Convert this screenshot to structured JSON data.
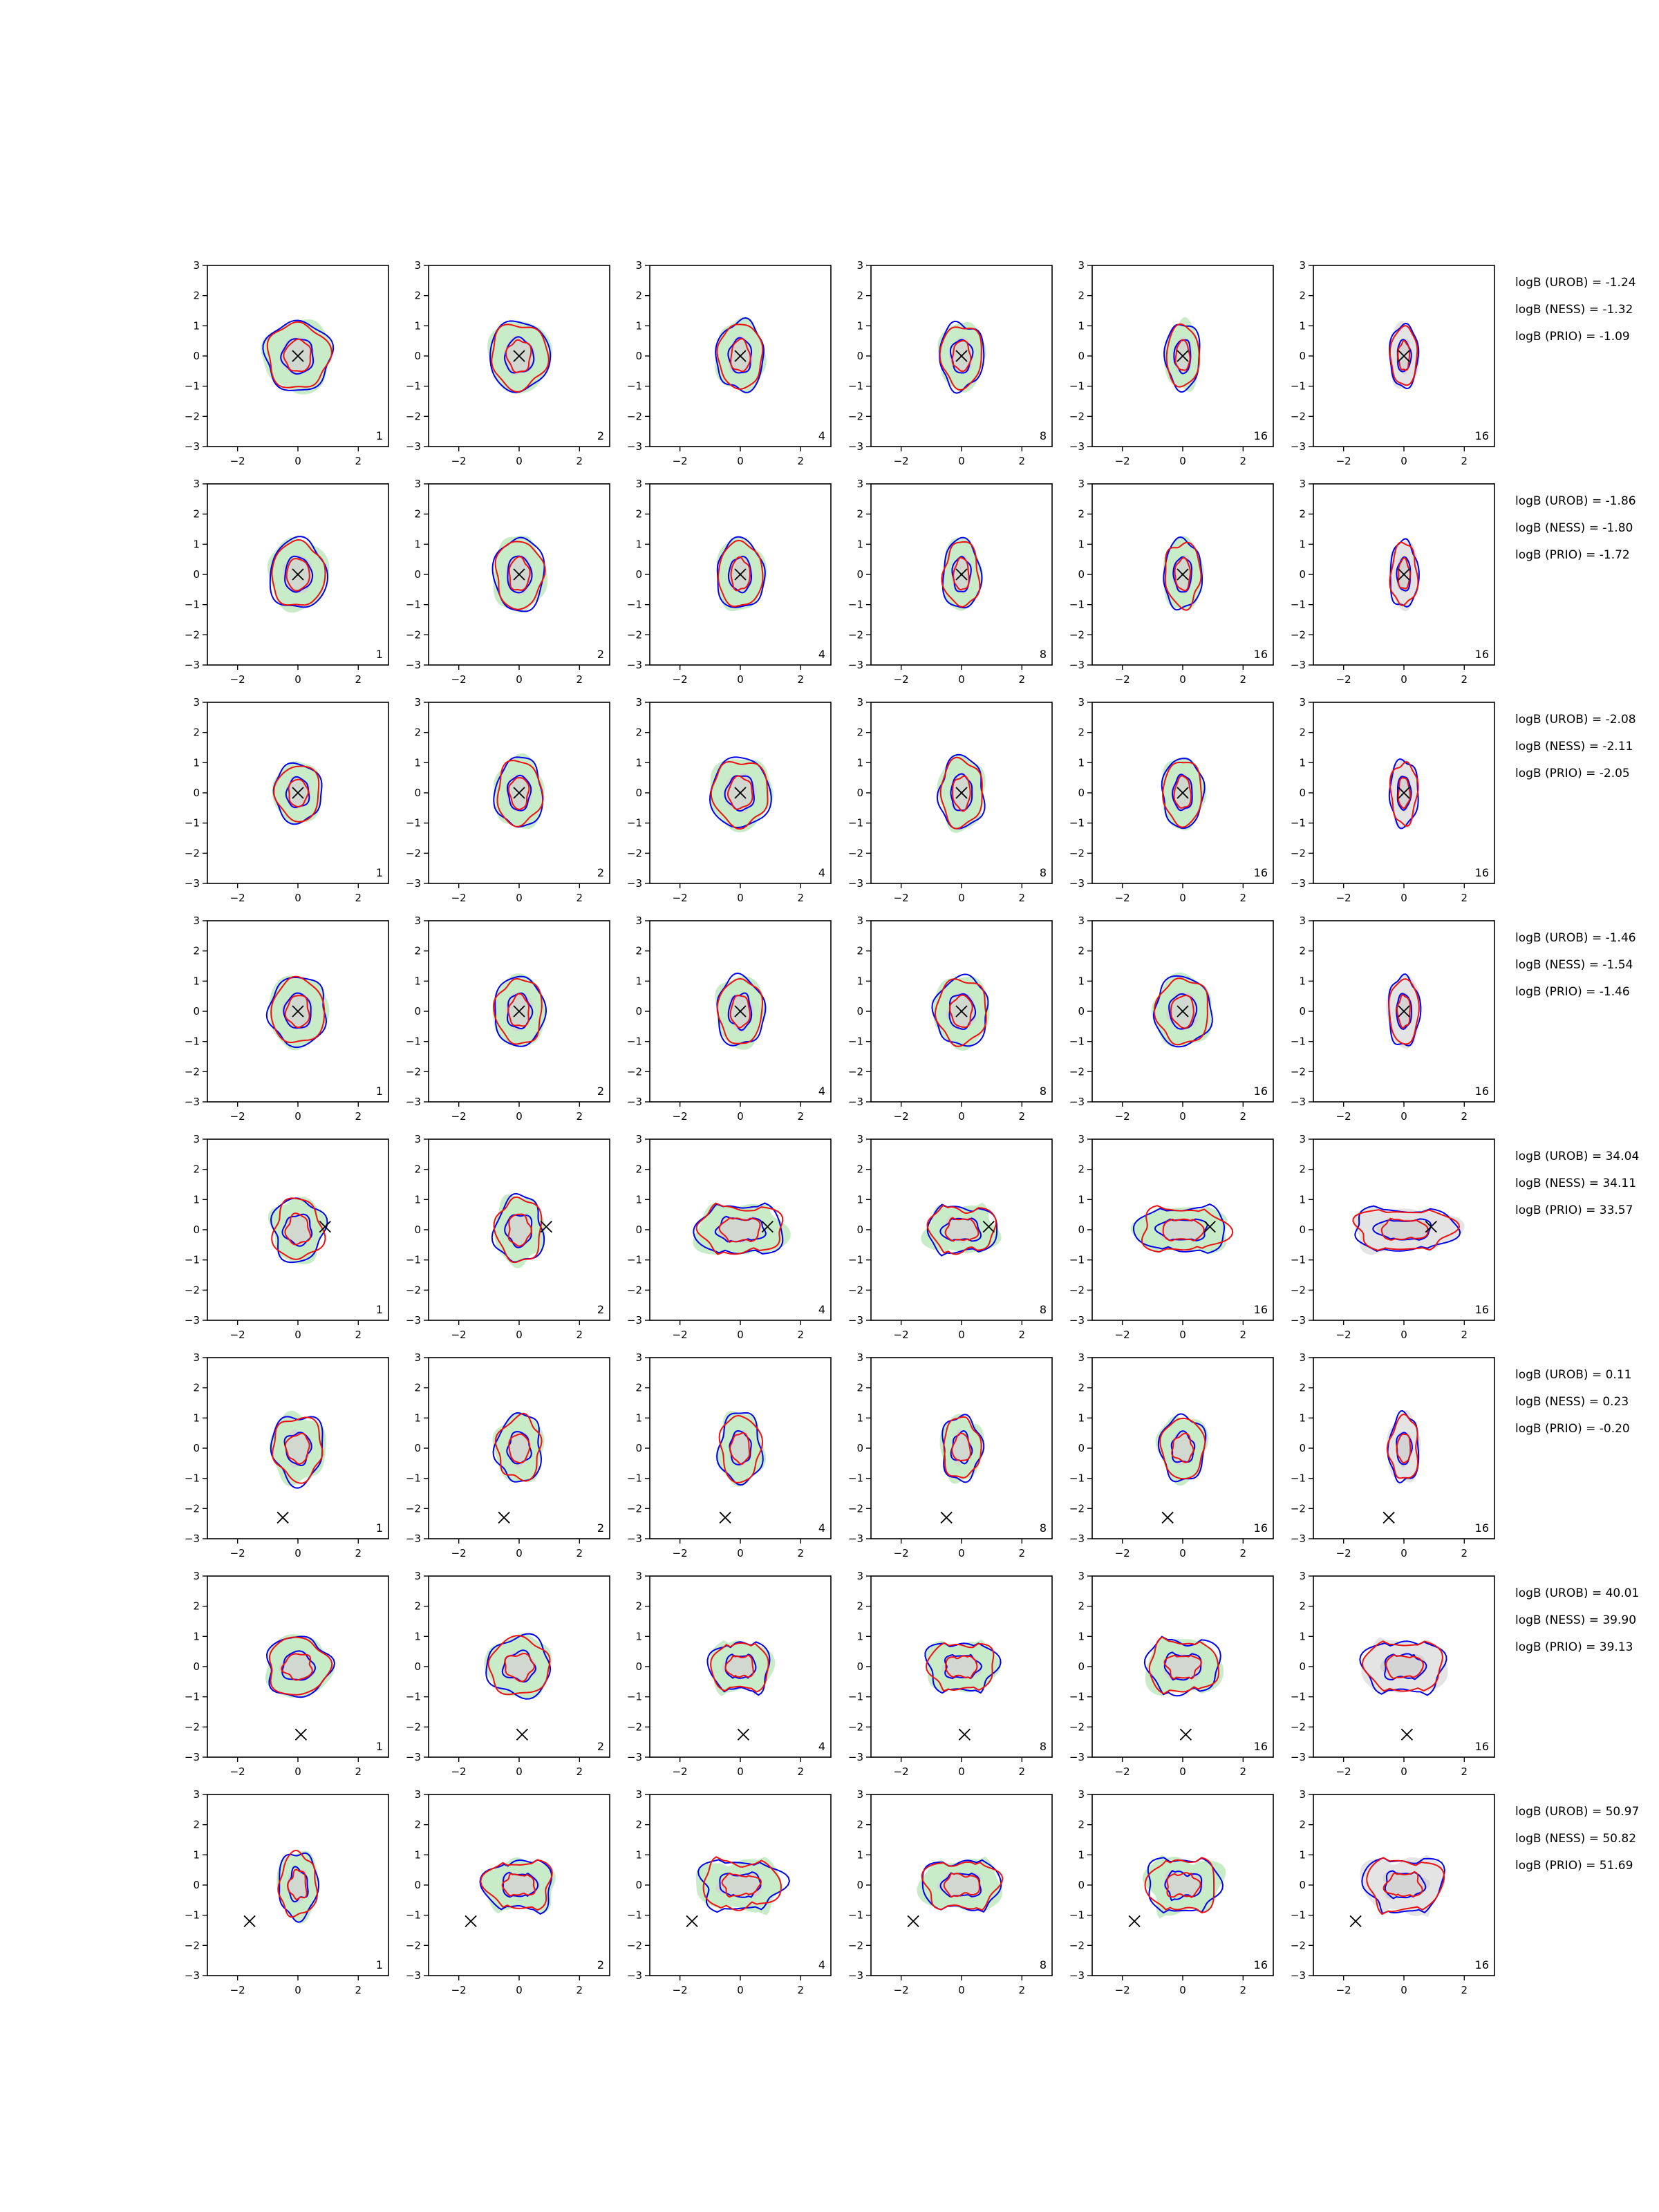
{
  "chart_data": {
    "type": "contour",
    "layout": {
      "rows": 8,
      "cols": 6
    },
    "xlim": [
      -3,
      3
    ],
    "ylim": [
      -3,
      3
    ],
    "xticks": [
      "−2",
      "0",
      "2"
    ],
    "yticks": [
      "3",
      "2",
      "1",
      "0",
      "−1",
      "−2",
      "−3"
    ],
    "grid": false,
    "panel_labels": [
      "1",
      "2",
      "4",
      "8",
      "16",
      "16"
    ],
    "colors": {
      "contour_a": "#0000ee",
      "contour_b": "#ee1111",
      "filled_outer": "#c8ecc8",
      "filled_inner": "#d0d8d0",
      "filled_last_col": "#e4e4e4",
      "filled_last_col_inner": "#d4d4d4",
      "marker": "#000000"
    },
    "rows": [
      {
        "marker": [
          0.0,
          0.0
        ],
        "logb": [
          "logB (UROB) = -1.24",
          "logB (NESS) = -1.32",
          "logB (PRIO) = -1.09"
        ]
      },
      {
        "marker": [
          0.0,
          0.0
        ],
        "logb": [
          "logB (UROB) = -1.86",
          "logB (NESS) = -1.80",
          "logB (PRIO) = -1.72"
        ]
      },
      {
        "marker": [
          0.0,
          0.0
        ],
        "logb": [
          "logB (UROB) = -2.08",
          "logB (NESS) = -2.11",
          "logB (PRIO) = -2.05"
        ]
      },
      {
        "marker": [
          0.0,
          0.0
        ],
        "logb": [
          "logB (UROB) = -1.46",
          "logB (NESS) = -1.54",
          "logB (PRIO) = -1.46"
        ]
      },
      {
        "marker": [
          0.9,
          0.1
        ],
        "logb": [
          "logB (UROB) = 34.04",
          "logB (NESS) = 34.11",
          "logB (PRIO) = 33.57"
        ]
      },
      {
        "marker": [
          -0.5,
          -2.3
        ],
        "logb": [
          "logB (UROB) = 0.11",
          "logB (NESS) = 0.23",
          "logB (PRIO) = -0.20"
        ]
      },
      {
        "marker": [
          0.1,
          -2.25
        ],
        "logb": [
          "logB (UROB) = 40.01",
          "logB (NESS) = 39.90",
          "logB (PRIO) = 39.13"
        ]
      },
      {
        "marker": [
          -1.6,
          -1.2
        ],
        "logb": [
          "logB (UROB) = 50.97",
          "logB (NESS) = 50.82",
          "logB (PRIO) = 51.69"
        ]
      }
    ]
  }
}
